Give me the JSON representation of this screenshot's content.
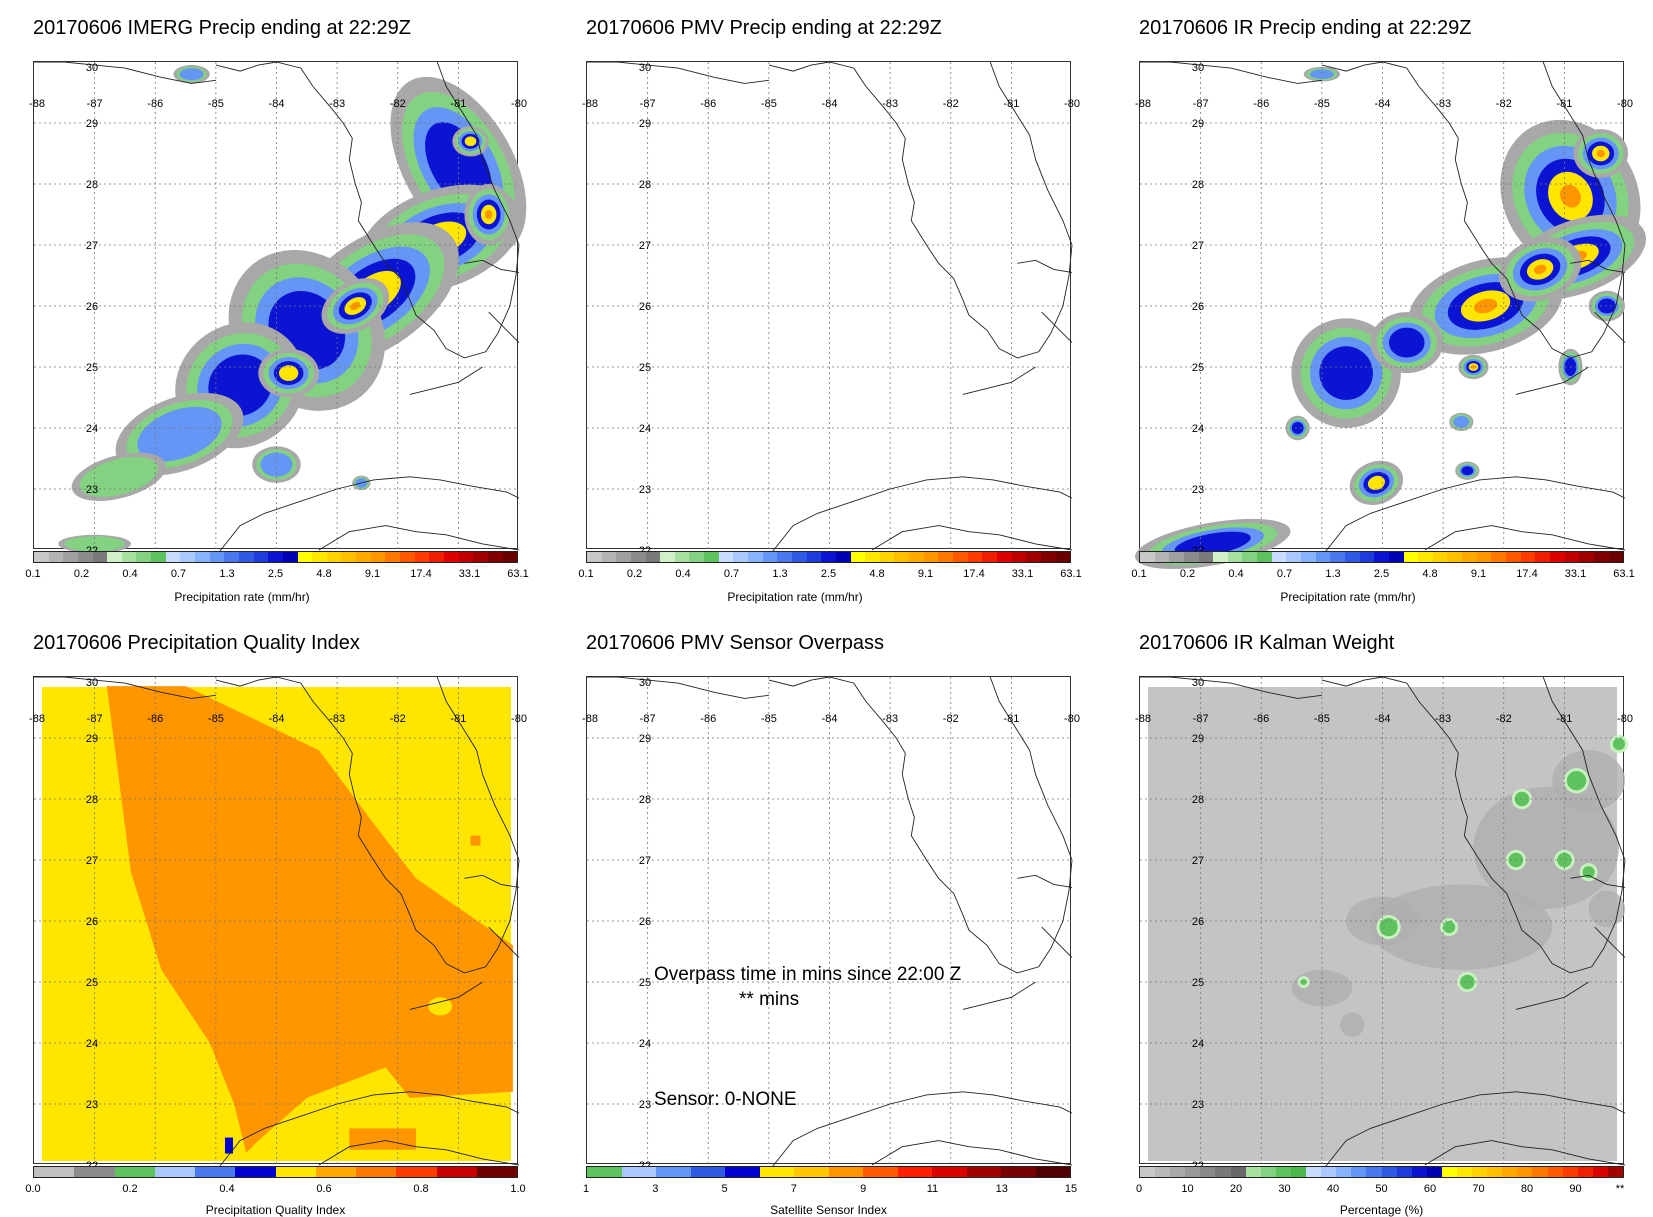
{
  "panels": [
    {
      "title": "20170606 IMERG Precip ending at 22:29Z"
    },
    {
      "title": "20170606 PMV Precip ending at 22:29Z"
    },
    {
      "title": "20170606 IR Precip ending at 22:29Z"
    },
    {
      "title": "20170606 Precipitation Quality Index"
    },
    {
      "title": "20170606 PMV Sensor Overpass"
    },
    {
      "title": "20170606 IR Kalman Weight"
    }
  ],
  "map": {
    "lon_labels": [
      "-88",
      "-87",
      "-86",
      "-85",
      "-84",
      "-83",
      "-82",
      "-81",
      "-80"
    ],
    "lat_labels": [
      "30",
      "29",
      "28",
      "27",
      "26",
      "25",
      "24",
      "23",
      "22"
    ]
  },
  "colorbars": {
    "precip": {
      "title": "Precipitation rate (mm/hr)",
      "labels": [
        "0.1",
        "0.2",
        "0.4",
        "0.7",
        "1.3",
        "2.5",
        "4.8",
        "9.1",
        "17.4",
        "33.1",
        "63.1"
      ],
      "colors": [
        "#c8c8c8",
        "#b4b4b4",
        "#a0a0a0",
        "#8c8c8c",
        "#7a7a7a",
        "#d2f0c8",
        "#a8e0a0",
        "#82d282",
        "#5ec35e",
        "#c8dcff",
        "#a8c8ff",
        "#88b4ff",
        "#6696f5",
        "#4a78ee",
        "#2e5ae6",
        "#1e3cdc",
        "#0a14d2",
        "#0000b4",
        "#ffff00",
        "#ffe800",
        "#ffd200",
        "#ffbe00",
        "#ffaa00",
        "#ff9600",
        "#ff7800",
        "#ff5a00",
        "#ff3c00",
        "#f01e00",
        "#dc0000",
        "#c00000",
        "#a00000",
        "#820000",
        "#6a0000"
      ]
    },
    "qi": {
      "title": "Precipitation Quality Index",
      "labels": [
        "0.0",
        "0.2",
        "0.4",
        "0.6",
        "0.8",
        "1.0"
      ],
      "colors": [
        "#c0c0c0",
        "#8c8c8c",
        "#5ec35e",
        "#a8c8ff",
        "#4a78ee",
        "#0000d2",
        "#ffe600",
        "#ffaa00",
        "#ff7800",
        "#ff3c00",
        "#c80000",
        "#6e0000"
      ]
    },
    "sensor": {
      "title": "Satellite Sensor Index",
      "labels": [
        "1",
        "3",
        "5",
        "7",
        "9",
        "11",
        "13",
        "15"
      ],
      "colors": [
        "#5ec35e",
        "#a8c8ff",
        "#6696f5",
        "#2e5ae6",
        "#0000d2",
        "#ffe600",
        "#ffc800",
        "#ff9600",
        "#ff5a00",
        "#ff1e00",
        "#dc0000",
        "#a00000",
        "#780000",
        "#500000"
      ]
    },
    "kalman": {
      "title": "Percentage (%)",
      "labels": [
        "0",
        "10",
        "20",
        "30",
        "40",
        "50",
        "60",
        "70",
        "80",
        "90",
        "**"
      ],
      "colors": [
        "#c8c8c8",
        "#b8b8b8",
        "#a8a8a8",
        "#989898",
        "#888888",
        "#787878",
        "#686868",
        "#a8e0a0",
        "#82d282",
        "#5ec35e",
        "#4cb84c",
        "#c8dcff",
        "#a8c8ff",
        "#88b4ff",
        "#6696f5",
        "#4a78ee",
        "#2e5ae6",
        "#1e3cdc",
        "#0a14d2",
        "#0000b4",
        "#ffff00",
        "#ffe800",
        "#ffd200",
        "#ffbe00",
        "#ffaa00",
        "#ff9600",
        "#ff7800",
        "#ff5a00",
        "#ff3c00",
        "#f01e00",
        "#dc0000",
        "#a00000"
      ]
    }
  },
  "overpass": {
    "time_line": "Overpass time in mins since 22:00 Z",
    "mins_line": "** mins",
    "sensor_line": "Sensor:   0-NONE"
  }
}
